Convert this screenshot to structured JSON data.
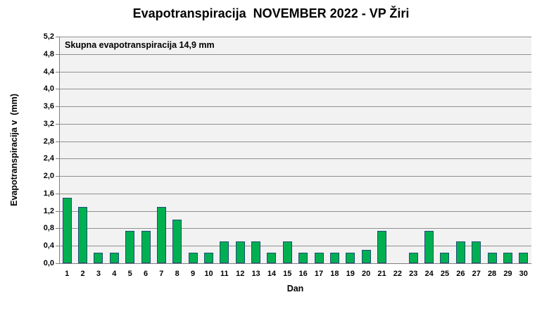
{
  "chart_data": {
    "type": "bar",
    "title": "Evapotranspiracija  NOVEMBER 2022 - VP Žiri",
    "annotation": "Skupna evapotranspiracija 14,9 mm",
    "total_evapotranspiration_mm": "14,9",
    "xlabel": "Dan",
    "ylabel": "Evapotranspiracija v  (mm)",
    "categories": [
      "1",
      "2",
      "3",
      "4",
      "5",
      "6",
      "7",
      "8",
      "9",
      "10",
      "11",
      "12",
      "13",
      "14",
      "15",
      "16",
      "17",
      "18",
      "19",
      "20",
      "21",
      "22",
      "23",
      "24",
      "25",
      "26",
      "27",
      "28",
      "29",
      "30"
    ],
    "values": [
      1.5,
      1.3,
      0.25,
      0.25,
      0.75,
      0.75,
      1.3,
      1.0,
      0.25,
      0.25,
      0.5,
      0.5,
      0.5,
      0.25,
      0.5,
      0.25,
      0.25,
      0.25,
      0.25,
      0.3,
      0.75,
      0,
      0.25,
      0.75,
      0.25,
      0.5,
      0.5,
      0.25,
      0.25,
      0.25
    ],
    "ylim": [
      0,
      5.2
    ],
    "ytick_step": 0.4,
    "ytick_labels": [
      "0,0",
      "0,4",
      "0,8",
      "1,2",
      "1,6",
      "2,0",
      "2,4",
      "2,8",
      "3,2",
      "3,6",
      "4,0",
      "4,4",
      "4,8",
      "5,2"
    ],
    "grid": true,
    "legend": false,
    "colors": {
      "bar_fill": "#00B050",
      "bar_border": "#1F4E79",
      "plot_bg": "#F2F2F2",
      "gridline": "#909090",
      "axis": "#7F7F7F",
      "text": "#000000",
      "background": "#FFFFFF"
    }
  }
}
